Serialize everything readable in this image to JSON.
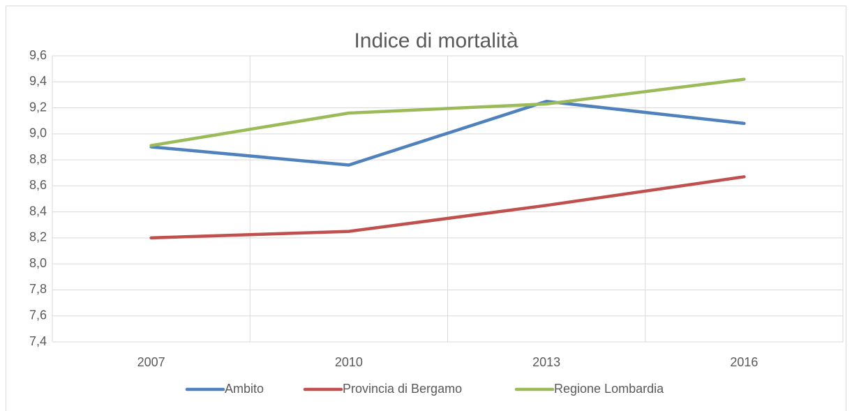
{
  "chart_data": {
    "type": "line",
    "title": "Indice di mortalità",
    "categories": [
      "2007",
      "2010",
      "2013",
      "2016"
    ],
    "series": [
      {
        "name": "Ambito",
        "color": "#4f81bd",
        "values": [
          8.9,
          8.76,
          9.25,
          9.08
        ]
      },
      {
        "name": "Provincia di Bergamo",
        "color": "#c0504d",
        "values": [
          8.2,
          8.25,
          8.45,
          8.67
        ]
      },
      {
        "name": "Regione Lombardia",
        "color": "#9bbb59",
        "values": [
          8.91,
          9.16,
          9.23,
          9.42
        ]
      }
    ],
    "ylim": [
      7.4,
      9.6
    ],
    "yticks": [
      {
        "value": 7.4,
        "label": "7,4"
      },
      {
        "value": 7.6,
        "label": "7,6"
      },
      {
        "value": 7.8,
        "label": "7,8"
      },
      {
        "value": 8.0,
        "label": "8,0"
      },
      {
        "value": 8.2,
        "label": "8,2"
      },
      {
        "value": 8.4,
        "label": "8,4"
      },
      {
        "value": 8.6,
        "label": "8,6"
      },
      {
        "value": 8.8,
        "label": "8,8"
      },
      {
        "value": 9.0,
        "label": "9,0"
      },
      {
        "value": 9.2,
        "label": "9,2"
      },
      {
        "value": 9.4,
        "label": "9,4"
      },
      {
        "value": 9.6,
        "label": "9,6"
      }
    ],
    "grid": true,
    "legend": "bottom"
  }
}
